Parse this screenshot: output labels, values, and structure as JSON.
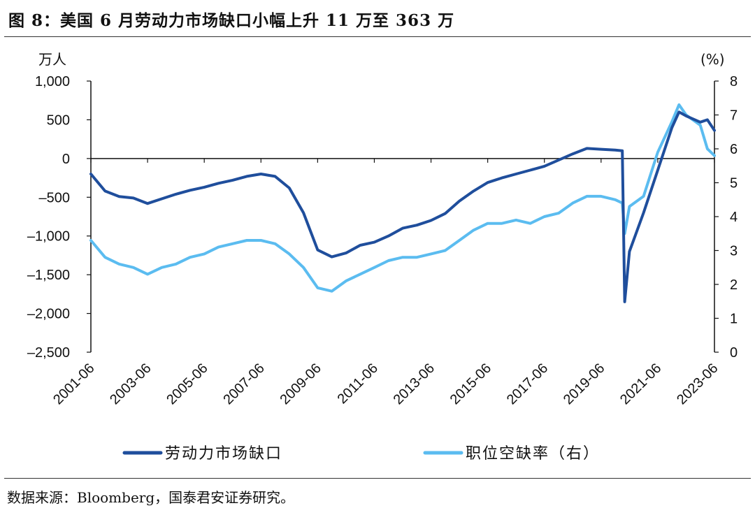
{
  "title": "图 8：美国 6 月劳动力市场缺口小幅上升 11 万至 363 万",
  "source": "数据来源：Bloomberg，国泰君安证券研究。",
  "colors": {
    "series1": "#1f4e9c",
    "series2": "#5bbcf0",
    "axis": "#111111"
  },
  "chart_data": {
    "type": "line",
    "left_axis": {
      "label": "万人",
      "ticks": [
        1000,
        500,
        0,
        -500,
        -1000,
        -1500,
        -2000,
        -2500
      ],
      "tick_labels": [
        "1,000",
        "500",
        "0",
        "–500",
        "–1,000",
        "–1,500",
        "–2,000",
        "–2,500"
      ],
      "range": [
        -2500,
        1000
      ]
    },
    "right_axis": {
      "label": "(%)",
      "ticks": [
        8,
        7,
        6,
        5,
        4,
        3,
        2,
        1,
        0
      ],
      "tick_labels": [
        "8",
        "7",
        "6",
        "5",
        "4",
        "3",
        "2",
        "1",
        "0"
      ],
      "range": [
        0,
        8
      ]
    },
    "x_axis": {
      "range": [
        "2001-06",
        "2023-06"
      ],
      "tick_labels": [
        "2001-06",
        "2003-06",
        "2005-06",
        "2007-06",
        "2009-06",
        "2011-06",
        "2013-06",
        "2015-06",
        "2017-06",
        "2019-06",
        "2021-06",
        "2023-06"
      ]
    },
    "series": [
      {
        "name": "劳动力市场缺口",
        "axis": "left",
        "points": [
          [
            "2001-06",
            -200
          ],
          [
            "2001-12",
            -420
          ],
          [
            "2002-06",
            -490
          ],
          [
            "2002-12",
            -510
          ],
          [
            "2003-06",
            -580
          ],
          [
            "2003-12",
            -520
          ],
          [
            "2004-06",
            -460
          ],
          [
            "2004-12",
            -410
          ],
          [
            "2005-06",
            -370
          ],
          [
            "2005-12",
            -320
          ],
          [
            "2006-06",
            -280
          ],
          [
            "2006-12",
            -230
          ],
          [
            "2007-06",
            -200
          ],
          [
            "2007-12",
            -230
          ],
          [
            "2008-06",
            -380
          ],
          [
            "2008-12",
            -700
          ],
          [
            "2009-06",
            -1180
          ],
          [
            "2009-12",
            -1270
          ],
          [
            "2010-06",
            -1220
          ],
          [
            "2010-12",
            -1120
          ],
          [
            "2011-06",
            -1080
          ],
          [
            "2011-12",
            -1000
          ],
          [
            "2012-06",
            -900
          ],
          [
            "2012-12",
            -860
          ],
          [
            "2013-06",
            -800
          ],
          [
            "2013-12",
            -710
          ],
          [
            "2014-06",
            -550
          ],
          [
            "2014-12",
            -420
          ],
          [
            "2015-06",
            -310
          ],
          [
            "2015-12",
            -250
          ],
          [
            "2016-06",
            -200
          ],
          [
            "2016-12",
            -150
          ],
          [
            "2017-06",
            -100
          ],
          [
            "2017-12",
            -20
          ],
          [
            "2018-06",
            60
          ],
          [
            "2018-12",
            130
          ],
          [
            "2019-06",
            120
          ],
          [
            "2019-12",
            110
          ],
          [
            "2020-03",
            100
          ],
          [
            "2020-04",
            -1850
          ],
          [
            "2020-06",
            -1200
          ],
          [
            "2020-12",
            -700
          ],
          [
            "2021-06",
            -150
          ],
          [
            "2021-12",
            400
          ],
          [
            "2022-03",
            600
          ],
          [
            "2022-06",
            550
          ],
          [
            "2022-12",
            470
          ],
          [
            "2023-03",
            500
          ],
          [
            "2023-06",
            363
          ]
        ]
      },
      {
        "name": "职位空缺率（右）",
        "axis": "right",
        "points": [
          [
            "2001-06",
            3.3
          ],
          [
            "2001-12",
            2.8
          ],
          [
            "2002-06",
            2.6
          ],
          [
            "2002-12",
            2.5
          ],
          [
            "2003-06",
            2.3
          ],
          [
            "2003-12",
            2.5
          ],
          [
            "2004-06",
            2.6
          ],
          [
            "2004-12",
            2.8
          ],
          [
            "2005-06",
            2.9
          ],
          [
            "2005-12",
            3.1
          ],
          [
            "2006-06",
            3.2
          ],
          [
            "2006-12",
            3.3
          ],
          [
            "2007-06",
            3.3
          ],
          [
            "2007-12",
            3.2
          ],
          [
            "2008-06",
            2.9
          ],
          [
            "2008-12",
            2.5
          ],
          [
            "2009-06",
            1.9
          ],
          [
            "2009-12",
            1.8
          ],
          [
            "2010-06",
            2.1
          ],
          [
            "2010-12",
            2.3
          ],
          [
            "2011-06",
            2.5
          ],
          [
            "2011-12",
            2.7
          ],
          [
            "2012-06",
            2.8
          ],
          [
            "2012-12",
            2.8
          ],
          [
            "2013-06",
            2.9
          ],
          [
            "2013-12",
            3.0
          ],
          [
            "2014-06",
            3.3
          ],
          [
            "2014-12",
            3.6
          ],
          [
            "2015-06",
            3.8
          ],
          [
            "2015-12",
            3.8
          ],
          [
            "2016-06",
            3.9
          ],
          [
            "2016-12",
            3.8
          ],
          [
            "2017-06",
            4.0
          ],
          [
            "2017-12",
            4.1
          ],
          [
            "2018-06",
            4.4
          ],
          [
            "2018-12",
            4.6
          ],
          [
            "2019-06",
            4.6
          ],
          [
            "2019-12",
            4.5
          ],
          [
            "2020-03",
            4.4
          ],
          [
            "2020-04",
            3.5
          ],
          [
            "2020-06",
            4.3
          ],
          [
            "2020-12",
            4.6
          ],
          [
            "2021-06",
            5.9
          ],
          [
            "2021-12",
            6.8
          ],
          [
            "2022-03",
            7.3
          ],
          [
            "2022-06",
            7.0
          ],
          [
            "2022-12",
            6.7
          ],
          [
            "2023-03",
            6.0
          ],
          [
            "2023-06",
            5.8
          ]
        ]
      }
    ],
    "legend": {
      "placement": "bottom",
      "items": [
        "劳动力市场缺口",
        "职位空缺率（右）"
      ]
    }
  }
}
